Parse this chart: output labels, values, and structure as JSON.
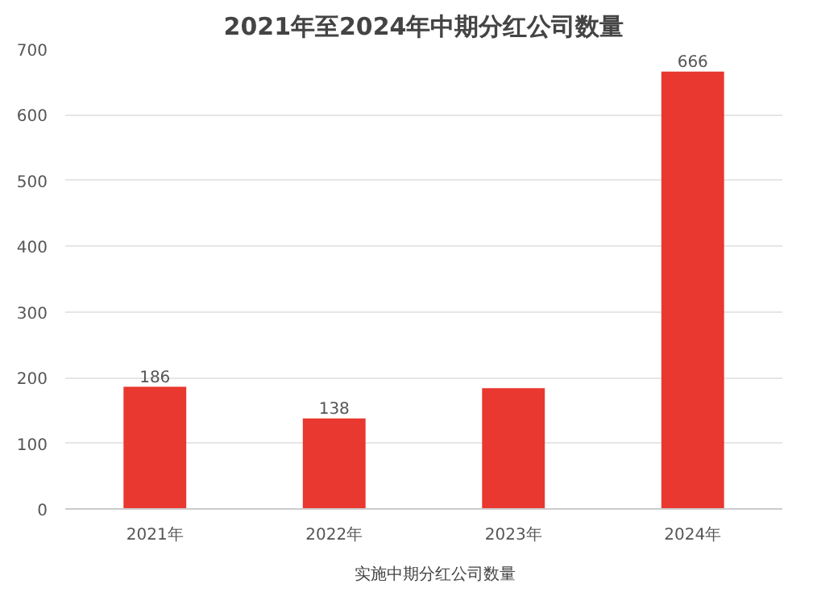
{
  "chart_data": {
    "type": "bar",
    "title": "2021年至2024年中期分红公司数量",
    "categories": [
      "2021年",
      "2022年",
      "2023年",
      "2024年"
    ],
    "series": [
      {
        "name": "实施中期分红公司数量",
        "color": "#e8382f",
        "values": [
          186,
          138,
          184,
          666
        ]
      }
    ],
    "value_labels": [
      "186",
      "138",
      null,
      "666"
    ],
    "ylim": [
      0,
      700
    ],
    "yticks": [
      0,
      100,
      200,
      300,
      400,
      500,
      600,
      700
    ],
    "grid": "y",
    "legend": "bottom"
  }
}
